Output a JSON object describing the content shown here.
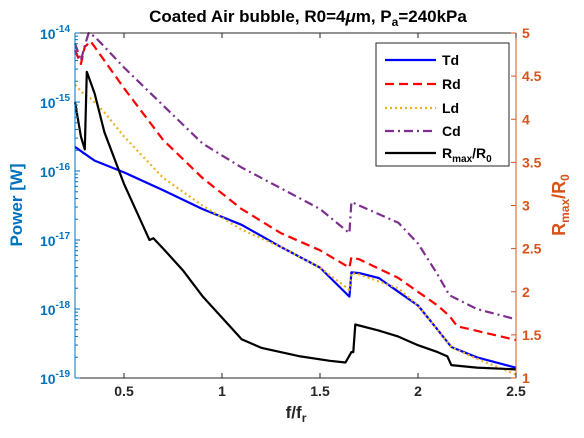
{
  "colors": {
    "left_axis": "#0072BD",
    "right_axis": "#D95319",
    "Td": "#0000FF",
    "Rd": "#FF0000",
    "Ld": "#EDB120",
    "Cd": "#7E2F8E",
    "Rmax": "#000000"
  },
  "chart_data": {
    "type": "line",
    "title_parts": {
      "pre": "Coated Air bubble, R0=4",
      "mu": "μ",
      "mid": "m, P",
      "sub": "a",
      "post": "=240kPa"
    },
    "xlabel_parts": {
      "main": "f/f",
      "sub": "r"
    },
    "ylabel_left": "Power [W]",
    "ylabel_right_parts": {
      "a": "R",
      "a_sub": "max",
      "b": "/R",
      "b_sub": "0"
    },
    "xlim": [
      0.25,
      2.5
    ],
    "ylim_left": [
      -19,
      -14
    ],
    "ylim_left_scale": "log10",
    "ylim_right": [
      1,
      5
    ],
    "grid": false,
    "legend_position": "top-right",
    "x_ticks": [
      0.5,
      1,
      1.5,
      2,
      2.5
    ],
    "x_tick_labels": [
      "0.5",
      "1",
      "1.5",
      "2",
      "2.5"
    ],
    "y_left_ticks": [
      {
        "exp": -19,
        "base": "10",
        "sup": "-19"
      },
      {
        "exp": -18,
        "base": "10",
        "sup": "-18"
      },
      {
        "exp": -17,
        "base": "10",
        "sup": "-17"
      },
      {
        "exp": -16,
        "base": "10",
        "sup": "-16"
      },
      {
        "exp": -15,
        "base": "10",
        "sup": "-15"
      },
      {
        "exp": -14,
        "base": "10",
        "sup": "-14"
      }
    ],
    "y_right_ticks": [
      1,
      1.5,
      2,
      2.5,
      3,
      3.5,
      4,
      4.5,
      5
    ],
    "y_right_tick_labels": [
      "1",
      "1.5",
      "2",
      "2.5",
      "3",
      "3.5",
      "4",
      "4.5",
      "5"
    ],
    "series": [
      {
        "key": "Td",
        "name": "Td",
        "axis": "left",
        "dash": "solid",
        "points": [
          [
            0.25,
            -15.65
          ],
          [
            0.3,
            -15.75
          ],
          [
            0.35,
            -15.85
          ],
          [
            0.5,
            -16.02
          ],
          [
            0.7,
            -16.28
          ],
          [
            0.9,
            -16.55
          ],
          [
            1.1,
            -16.78
          ],
          [
            1.3,
            -17.1
          ],
          [
            1.5,
            -17.4
          ],
          [
            1.65,
            -17.82
          ],
          [
            1.66,
            -17.47
          ],
          [
            1.7,
            -17.48
          ],
          [
            1.8,
            -17.55
          ],
          [
            1.9,
            -17.75
          ],
          [
            2.0,
            -17.95
          ],
          [
            2.1,
            -18.3
          ],
          [
            2.17,
            -18.55
          ],
          [
            2.3,
            -18.7
          ],
          [
            2.5,
            -18.85
          ]
        ]
      },
      {
        "key": "Rd",
        "name": "Rd",
        "axis": "left",
        "dash": "dashed",
        "points": [
          [
            0.25,
            -14.25
          ],
          [
            0.28,
            -14.45
          ],
          [
            0.3,
            -14.2
          ],
          [
            0.33,
            -14.12
          ],
          [
            0.4,
            -14.4
          ],
          [
            0.5,
            -14.8
          ],
          [
            0.7,
            -15.55
          ],
          [
            0.9,
            -16.1
          ],
          [
            1.1,
            -16.55
          ],
          [
            1.3,
            -16.9
          ],
          [
            1.5,
            -17.15
          ],
          [
            1.65,
            -17.4
          ],
          [
            1.66,
            -17.25
          ],
          [
            1.7,
            -17.28
          ],
          [
            1.9,
            -17.55
          ],
          [
            2.0,
            -17.75
          ],
          [
            2.1,
            -17.95
          ],
          [
            2.16,
            -18.1
          ],
          [
            2.2,
            -18.25
          ],
          [
            2.5,
            -18.45
          ]
        ]
      },
      {
        "key": "Ld",
        "name": "Ld",
        "axis": "left",
        "dash": "dotted",
        "points": [
          [
            0.25,
            -14.75
          ],
          [
            0.3,
            -14.9
          ],
          [
            0.33,
            -14.95
          ],
          [
            0.4,
            -15.15
          ],
          [
            0.5,
            -15.5
          ],
          [
            0.7,
            -16.1
          ],
          [
            0.9,
            -16.5
          ],
          [
            1.1,
            -16.85
          ],
          [
            1.3,
            -17.1
          ],
          [
            1.5,
            -17.4
          ],
          [
            1.65,
            -17.72
          ],
          [
            1.66,
            -17.48
          ],
          [
            1.7,
            -17.5
          ],
          [
            1.9,
            -17.7
          ],
          [
            2.0,
            -17.95
          ],
          [
            2.1,
            -18.3
          ],
          [
            2.17,
            -18.55
          ],
          [
            2.3,
            -18.72
          ],
          [
            2.5,
            -18.95
          ]
        ]
      },
      {
        "key": "Cd",
        "name": "Cd",
        "axis": "left",
        "dash": "dashdot",
        "points": [
          [
            0.25,
            -14.15
          ],
          [
            0.28,
            -14.4
          ],
          [
            0.3,
            -14.18
          ],
          [
            0.32,
            -14.0
          ],
          [
            0.35,
            -14.05
          ],
          [
            0.4,
            -14.2
          ],
          [
            0.5,
            -14.5
          ],
          [
            0.7,
            -15.05
          ],
          [
            0.9,
            -15.6
          ],
          [
            1.1,
            -15.95
          ],
          [
            1.3,
            -16.25
          ],
          [
            1.5,
            -16.55
          ],
          [
            1.65,
            -16.9
          ],
          [
            1.66,
            -16.45
          ],
          [
            1.7,
            -16.5
          ],
          [
            1.9,
            -16.75
          ],
          [
            2.0,
            -17.05
          ],
          [
            2.1,
            -17.5
          ],
          [
            2.16,
            -17.8
          ],
          [
            2.3,
            -18.0
          ],
          [
            2.5,
            -18.15
          ]
        ]
      },
      {
        "key": "Rmax",
        "name": "R_max/R_0",
        "axis": "right",
        "dash": "solid",
        "points": [
          [
            0.25,
            4.2
          ],
          [
            0.28,
            3.8
          ],
          [
            0.3,
            3.65
          ],
          [
            0.31,
            4.55
          ],
          [
            0.35,
            4.3
          ],
          [
            0.4,
            3.85
          ],
          [
            0.5,
            3.25
          ],
          [
            0.6,
            2.75
          ],
          [
            0.63,
            2.6
          ],
          [
            0.65,
            2.62
          ],
          [
            0.7,
            2.5
          ],
          [
            0.8,
            2.25
          ],
          [
            0.9,
            1.95
          ],
          [
            1.0,
            1.7
          ],
          [
            1.08,
            1.5
          ],
          [
            1.1,
            1.45
          ],
          [
            1.2,
            1.35
          ],
          [
            1.4,
            1.25
          ],
          [
            1.55,
            1.2
          ],
          [
            1.63,
            1.18
          ],
          [
            1.66,
            1.3
          ],
          [
            1.67,
            1.3
          ],
          [
            1.68,
            1.62
          ],
          [
            1.8,
            1.55
          ],
          [
            1.9,
            1.48
          ],
          [
            2.0,
            1.38
          ],
          [
            2.1,
            1.3
          ],
          [
            2.15,
            1.25
          ],
          [
            2.17,
            1.15
          ],
          [
            2.3,
            1.12
          ],
          [
            2.5,
            1.1
          ]
        ]
      }
    ],
    "legend": [
      {
        "key": "Td",
        "label": "Td"
      },
      {
        "key": "Rd",
        "label": "Rd"
      },
      {
        "key": "Ld",
        "label": "Ld"
      },
      {
        "key": "Cd",
        "label": "Cd"
      },
      {
        "key": "Rmax",
        "label_parts": {
          "a": "R",
          "a_sub": "max",
          "b": "/R",
          "b_sub": "0"
        }
      }
    ]
  }
}
